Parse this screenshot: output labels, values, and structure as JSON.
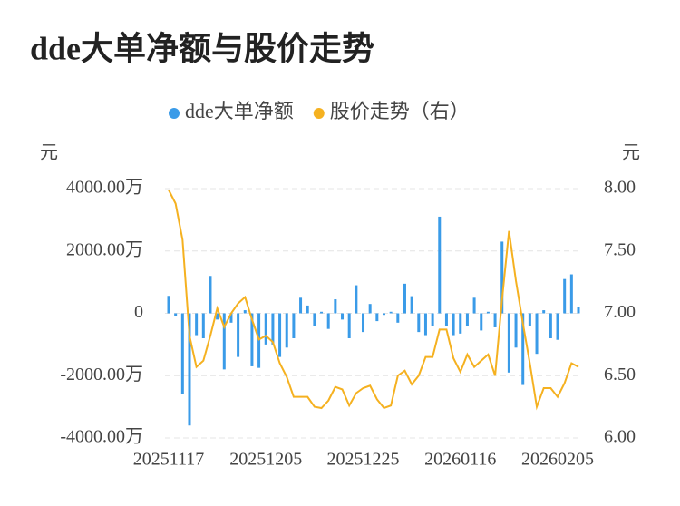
{
  "chart_data": {
    "type": "bar-line",
    "title": "dde大单净额与股价走势",
    "y_label": "元",
    "y2_label": "元",
    "categories": [
      "20251117",
      null,
      null,
      null,
      null,
      null,
      null,
      null,
      null,
      null,
      null,
      null,
      null,
      null,
      "20251205",
      null,
      null,
      null,
      null,
      null,
      null,
      null,
      null,
      null,
      null,
      null,
      null,
      null,
      "20251225",
      null,
      null,
      null,
      null,
      null,
      null,
      null,
      null,
      null,
      null,
      null,
      null,
      null,
      "20260116",
      null,
      null,
      null,
      null,
      null,
      null,
      null,
      null,
      null,
      null,
      null,
      null,
      null,
      "20260205",
      null,
      null,
      null
    ],
    "series": [
      {
        "name": "dde大单净额",
        "type": "bar",
        "color": "#3a9be8",
        "values": [
          560,
          -100,
          -2600,
          -3600,
          -700,
          -800,
          1200,
          -200,
          -1800,
          -300,
          -1400,
          100,
          -1700,
          -1750,
          -1000,
          -1000,
          -1400,
          -1100,
          -800,
          500,
          250,
          -400,
          50,
          -500,
          450,
          -200,
          -800,
          900,
          -600,
          300,
          -250,
          -50,
          50,
          -300,
          950,
          550,
          -600,
          -700,
          -400,
          3100,
          -400,
          -700,
          -650,
          -400,
          500,
          -550,
          50,
          -450,
          2300,
          -1900,
          -1100,
          -2300,
          -400,
          -1300,
          100,
          -800,
          -850,
          1100,
          1250,
          200
        ]
      },
      {
        "name": "股价走势（右）",
        "type": "line",
        "axis": "y2",
        "color": "#f5b120",
        "values": [
          7.99,
          7.88,
          7.59,
          6.82,
          6.57,
          6.62,
          6.82,
          7.04,
          6.89,
          7.0,
          7.08,
          7.13,
          6.95,
          6.79,
          6.82,
          6.77,
          6.6,
          6.49,
          6.33,
          6.33,
          6.33,
          6.25,
          6.24,
          6.3,
          6.41,
          6.39,
          6.26,
          6.36,
          6.4,
          6.42,
          6.31,
          6.24,
          6.26,
          6.5,
          6.54,
          6.43,
          6.5,
          6.65,
          6.65,
          6.87,
          6.87,
          6.64,
          6.53,
          6.67,
          6.57,
          6.62,
          6.67,
          6.5,
          7.11,
          7.66,
          7.26,
          6.92,
          6.6,
          6.25,
          6.4,
          6.4,
          6.33,
          6.44,
          6.6,
          6.57
        ]
      }
    ],
    "ylim": [
      -4000,
      4000
    ],
    "yticks": [
      {
        "value": -4000,
        "label": "-4000.00万"
      },
      {
        "value": -2000,
        "label": "-2000.00万"
      },
      0,
      {
        "value": 2000,
        "label": "2000.00万"
      },
      {
        "value": 4000,
        "label": "4000.00万"
      }
    ],
    "y2lim": [
      6,
      8
    ],
    "y2ticks": [
      {
        "value": 6,
        "label": "6.00"
      },
      {
        "value": 6.5,
        "label": "6.50"
      },
      {
        "value": 7,
        "label": "7.00"
      },
      {
        "value": 7.5,
        "label": "7.50"
      },
      {
        "value": 8,
        "label": "8.00"
      }
    ],
    "grid": true,
    "legend": "top"
  }
}
